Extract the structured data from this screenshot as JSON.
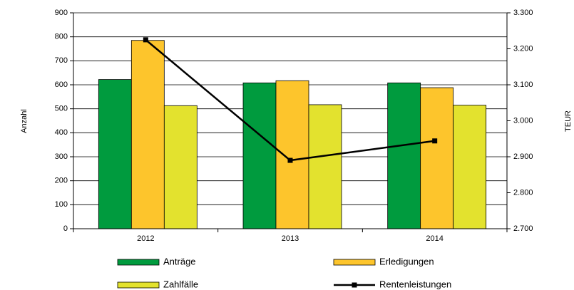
{
  "chart_data": {
    "type": "bar",
    "categories": [
      "2012",
      "2013",
      "2014"
    ],
    "series": [
      {
        "name": "Anträge",
        "color": "#009b3e",
        "values": [
          622,
          608,
          608
        ]
      },
      {
        "name": "Erledigungen",
        "color": "#fdc52c",
        "values": [
          785,
          617,
          588
        ]
      },
      {
        "name": "Zahlfälle",
        "color": "#e3e22e",
        "values": [
          513,
          517,
          515
        ]
      },
      {
        "name": "Rentenleistungen",
        "type": "line",
        "axis": "y2",
        "color": "#000000",
        "values": [
          3225,
          2890,
          2944
        ]
      }
    ],
    "ylabel": "Anzahl",
    "y2label": "TEUR",
    "ylim": [
      0,
      900
    ],
    "yticks": [
      0,
      100,
      200,
      300,
      400,
      500,
      600,
      700,
      800,
      900
    ],
    "y2lim": [
      2700,
      3300
    ],
    "y2ticks": [
      {
        "value": 2700,
        "label": "2.700"
      },
      {
        "value": 2800,
        "label": "2.800"
      },
      {
        "value": 2900,
        "label": "2.900"
      },
      {
        "value": 3000,
        "label": "3.000"
      },
      {
        "value": 3100,
        "label": "3.100"
      },
      {
        "value": 3200,
        "label": "3.200"
      },
      {
        "value": 3300,
        "label": "3.300"
      }
    ],
    "grid": true,
    "legend": "bottom"
  }
}
